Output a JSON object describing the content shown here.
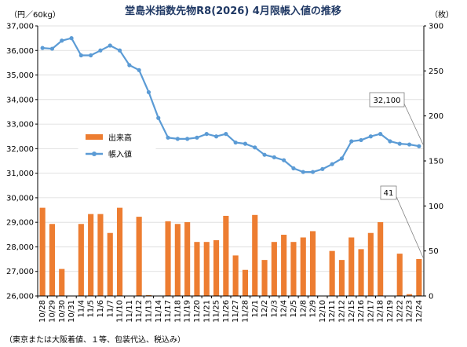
{
  "chart_data": {
    "type": "bar",
    "title": "堂島米指数先物R8(2026) 4月限帳入値の推移",
    "left_unit": "（円／60kg）",
    "right_unit": "（枚）",
    "footnote": "（東京または大阪着値、１等、包装代込、税込み）",
    "categories": [
      "10/28",
      "10/29",
      "10/30",
      "10/31",
      "11/4",
      "11/5",
      "11/6",
      "11/7",
      "11/10",
      "11/11",
      "11/12",
      "11/13",
      "11/14",
      "11/17",
      "11/18",
      "11/19",
      "11/20",
      "11/21",
      "11/25",
      "11/26",
      "11/27",
      "11/28",
      "12/1",
      "12/2",
      "12/3",
      "12/4",
      "12/5",
      "12/8",
      "12/9",
      "12/10",
      "12/11",
      "12/12",
      "12/15",
      "12/16",
      "12/17",
      "12/18",
      "12/19",
      "12/22",
      "12/23",
      "12/24"
    ],
    "left_axis": {
      "min": 26000,
      "max": 37000,
      "step": 1000
    },
    "right_axis": {
      "min": 0,
      "max": 300,
      "step": 50
    },
    "series": [
      {
        "name": "出来高",
        "type": "bar",
        "axis": "right",
        "color": "#ed7d31",
        "values": [
          98,
          80,
          30,
          0,
          80,
          91,
          91,
          70,
          98,
          0,
          88,
          1,
          0,
          83,
          80,
          82,
          60,
          60,
          62,
          89,
          45,
          29,
          90,
          40,
          60,
          68,
          60,
          65,
          72,
          0,
          50,
          40,
          65,
          52,
          70,
          82,
          0,
          47,
          2,
          41
        ]
      },
      {
        "name": "帳入値",
        "type": "line",
        "axis": "left",
        "color": "#5b9bd5",
        "values": [
          36100,
          36070,
          36400,
          36500,
          35800,
          35800,
          36000,
          36200,
          36000,
          35400,
          35200,
          34300,
          33250,
          32450,
          32400,
          32400,
          32450,
          32600,
          32500,
          32600,
          32250,
          32200,
          32050,
          31750,
          31650,
          31530,
          31200,
          31050,
          31050,
          31170,
          31370,
          31600,
          32300,
          32350,
          32500,
          32600,
          32300,
          32200,
          32170,
          32100
        ]
      }
    ],
    "annotations": [
      {
        "text": "32,100",
        "series": "帳入値",
        "index": 39
      },
      {
        "text": "41",
        "series": "出来高",
        "index": 39
      }
    ],
    "legend": {
      "position": "center-left",
      "entries": [
        "出来高",
        "帳入値"
      ]
    }
  }
}
